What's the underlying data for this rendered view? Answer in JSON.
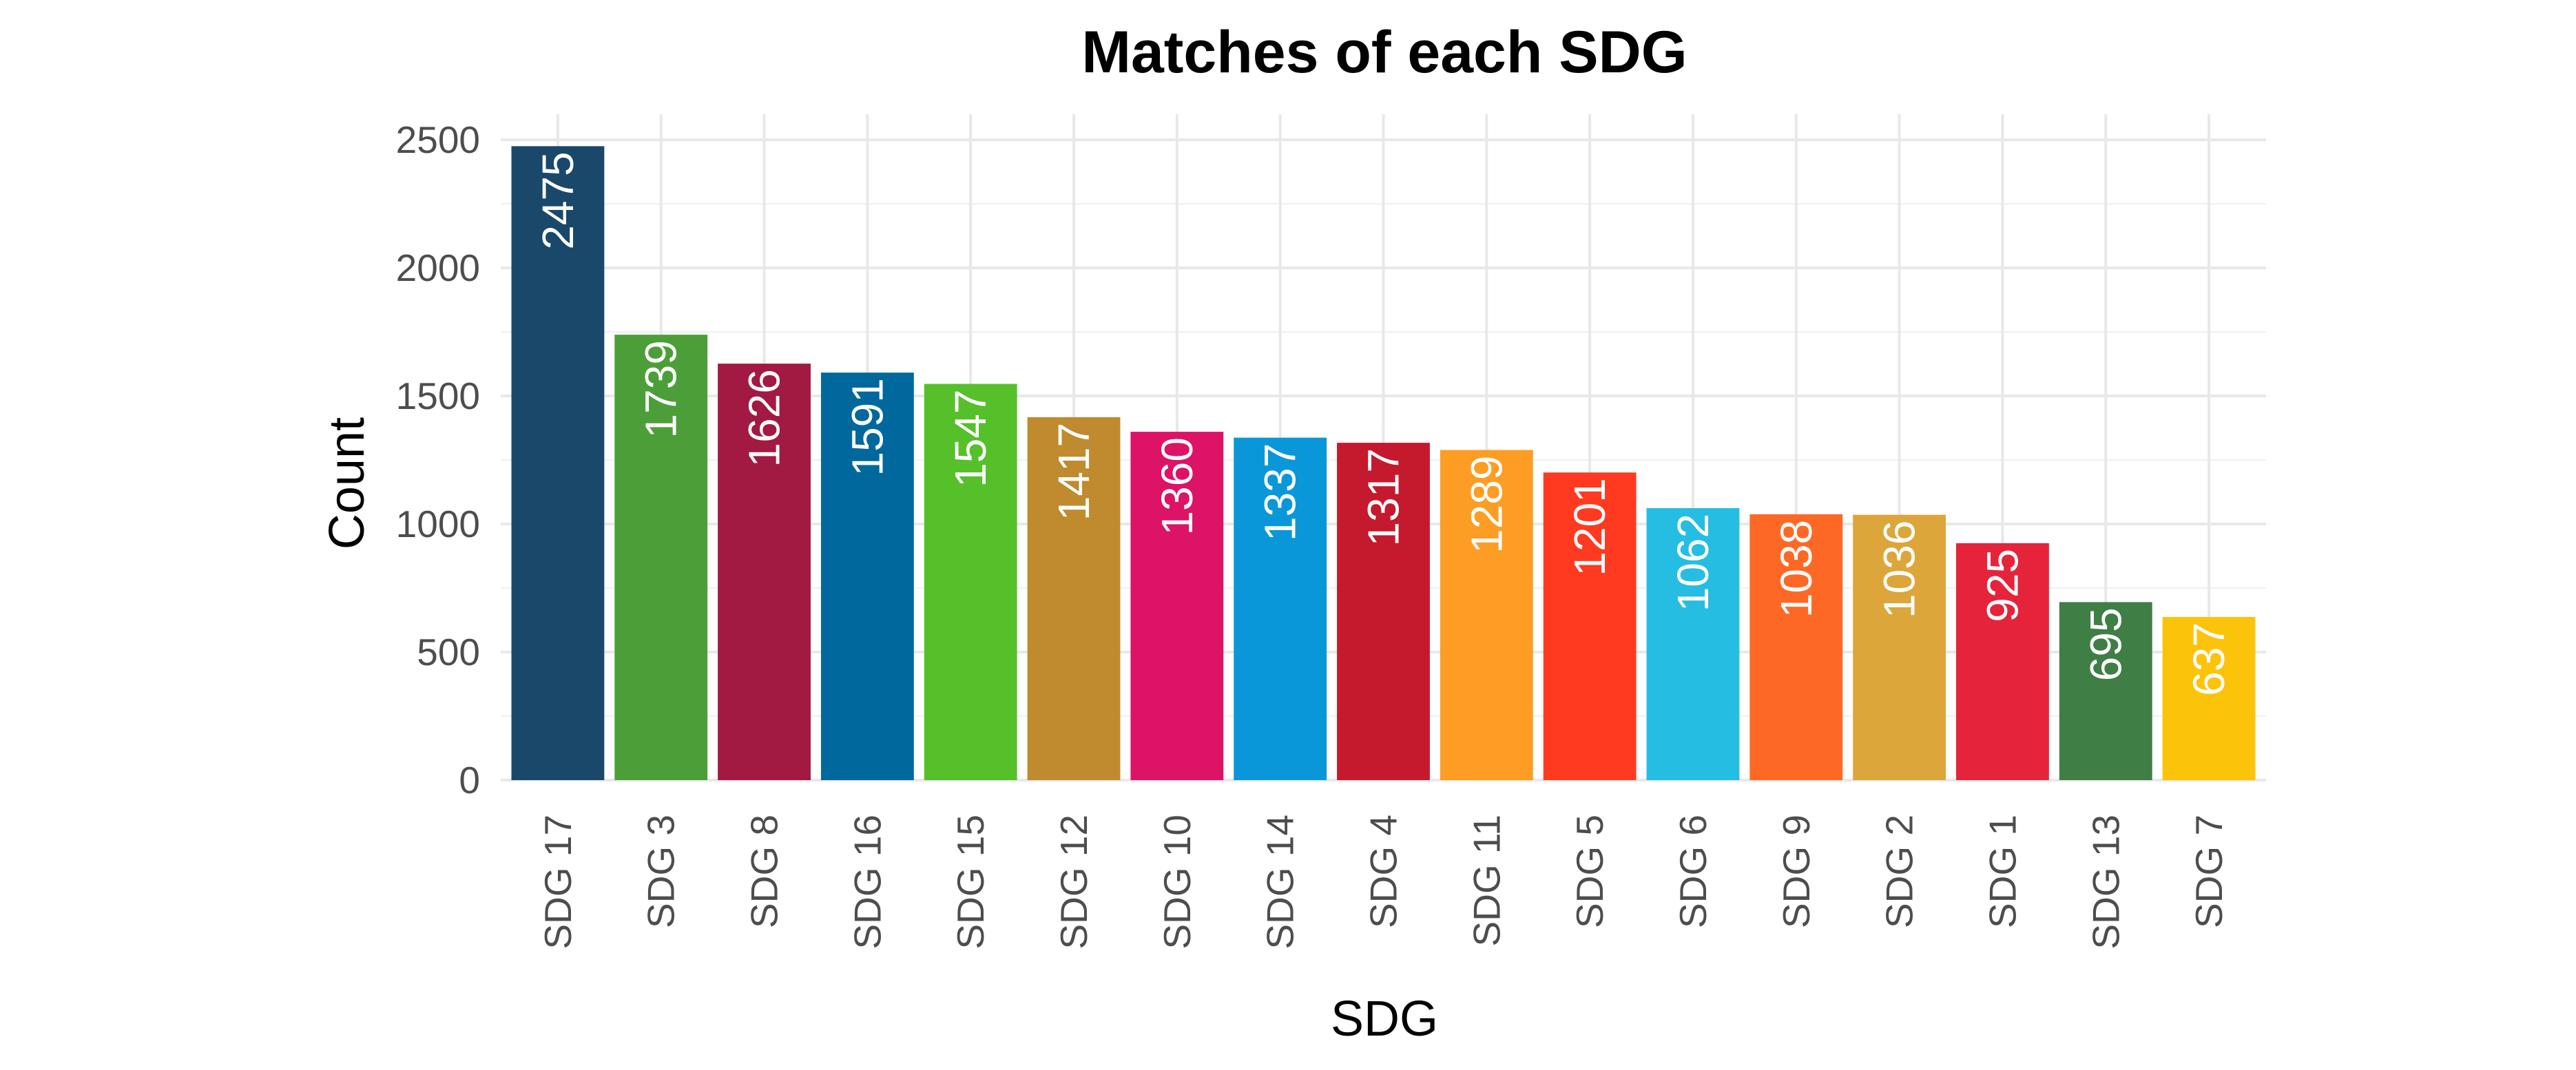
{
  "chart_data": {
    "type": "bar",
    "title": "Matches of each SDG",
    "xlabel": "SDG",
    "ylabel": "Count",
    "categories": [
      "SDG 17",
      "SDG 3",
      "SDG 8",
      "SDG 16",
      "SDG 15",
      "SDG 12",
      "SDG 10",
      "SDG 14",
      "SDG 4",
      "SDG 11",
      "SDG 5",
      "SDG 6",
      "SDG 9",
      "SDG 2",
      "SDG 1",
      "SDG 13",
      "SDG 7"
    ],
    "values": [
      2475,
      1739,
      1626,
      1591,
      1547,
      1417,
      1360,
      1337,
      1317,
      1289,
      1201,
      1062,
      1038,
      1036,
      925,
      695,
      637
    ],
    "colors": [
      "#19486A",
      "#4C9F38",
      "#A21942",
      "#00689D",
      "#56C02B",
      "#BF8B2E",
      "#DD1367",
      "#0A97D9",
      "#C5192D",
      "#FD9D24",
      "#FF3A21",
      "#26BDE2",
      "#FD6925",
      "#DDA63A",
      "#E5243B",
      "#3F7E44",
      "#FCC30B"
    ],
    "y_ticks": [
      0,
      500,
      1000,
      1500,
      2000,
      2500
    ],
    "ylim": [
      0,
      2600
    ],
    "grid": true,
    "legend": "none"
  }
}
